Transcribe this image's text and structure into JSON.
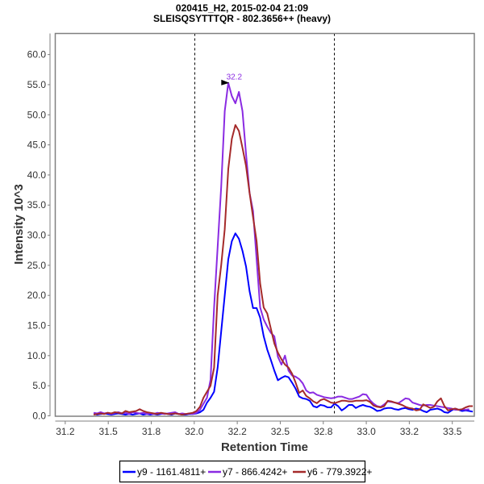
{
  "chart_data": {
    "type": "line",
    "title": [
      "020415_H2, 2015-02-04 21:09",
      "SLEISQSYTTTQR - 802.3656++ (heavy)"
    ],
    "xlabel": "Retention Time",
    "ylabel": "Intensity 10^3",
    "xlim": [
      31.192,
      33.628
    ],
    "ylim": [
      -0.07,
      63.5
    ],
    "x_ticks": [
      31.25,
      31.5,
      31.75,
      32.0,
      32.25,
      32.5,
      32.75,
      33.0,
      33.25,
      33.5
    ],
    "x_tick_labels": [
      "31.2",
      "31.5",
      "31.8",
      "32.0",
      "32.2",
      "32.5",
      "32.8",
      "33.0",
      "33.2",
      "33.5"
    ],
    "y_ticks": [
      0,
      5,
      10,
      15,
      20,
      25,
      30,
      35,
      40,
      45,
      50,
      55,
      60
    ],
    "y_tick_labels": [
      "0.0",
      "5.0",
      "10.0",
      "15.0",
      "20.0",
      "25.0",
      "30.0",
      "35.0",
      "40.0",
      "45.0",
      "50.0",
      "55.0",
      "60.0"
    ],
    "grid": false,
    "legend_position": "bottom",
    "integration_boundaries": [
      32.0,
      32.81
    ],
    "peak_annotation": {
      "label": "32.2",
      "x": 32.218,
      "y": 55.3,
      "color": "#8a2be2"
    },
    "x_start": 31.415,
    "x_step": 0.0206,
    "series": [
      {
        "name": "y9 - 1161.4811+",
        "color": "#0000ff",
        "values": [
          0.3,
          0.2,
          0.3,
          0.4,
          0.3,
          0.2,
          0.3,
          0.4,
          0.3,
          0.2,
          0.3,
          0.2,
          0.3,
          0.4,
          0.2,
          0.3,
          0.2,
          0.3,
          0.2,
          0.3,
          0.4,
          0.3,
          0.2,
          0.4,
          0.3,
          0.2,
          0.2,
          0.3,
          0.3,
          0.4,
          0.6,
          1.0,
          2.2,
          3.0,
          4.0,
          8,
          14,
          20,
          26,
          29,
          30.3,
          29.4,
          27.4,
          24.8,
          20.7,
          17.9,
          17.9,
          16.3,
          13.2,
          11,
          9.3,
          7.5,
          5.9,
          6.3,
          6.6,
          6.4,
          5.5,
          4.5,
          3.2,
          2.9,
          2.8,
          2.5,
          1.6,
          1.4,
          1.8,
          1.7,
          1.4,
          1.4,
          2.0,
          1.6,
          0.9,
          1.3,
          1.8,
          1.8,
          1.3,
          1.6,
          1.8,
          1.6,
          1.5,
          1.2,
          0.8,
          0.9,
          1.2,
          1.3,
          1.3,
          1.1,
          1.0,
          1.2,
          1.3,
          1.1,
          1.0,
          1.2,
          1.1,
          0.8,
          0.6,
          1.0,
          1.1,
          1.2,
          1.0,
          0.6,
          0.5,
          0.9,
          1.2,
          1.0,
          0.8,
          0.9,
          0.8,
          0.7
        ]
      },
      {
        "name": "y7 - 866.4242+",
        "color": "#8a2be2",
        "values": [
          0.5,
          0.4,
          0.6,
          0.4,
          0.5,
          0.3,
          0.5,
          0.6,
          0.4,
          0.5,
          0.3,
          0.6,
          0.5,
          0.4,
          0.5,
          0.3,
          0.4,
          0.3,
          0.5,
          0.4,
          0.3,
          0.4,
          0.5,
          0.6,
          0.3,
          0.4,
          0.3,
          0.4,
          0.3,
          0.5,
          1.0,
          2.0,
          3.0,
          6,
          18,
          28,
          38,
          50.6,
          55.3,
          53.1,
          51.9,
          53.8,
          50.6,
          43.5,
          37,
          34,
          26,
          18,
          16,
          14.8,
          13.8,
          13.2,
          9.8,
          8.5,
          10,
          7.5,
          6.7,
          6.5,
          6.1,
          5.4,
          4.2,
          3.8,
          3.9,
          3.5,
          3.3,
          3.1,
          3.0,
          2.9,
          3.0,
          3.2,
          3.2,
          3.0,
          2.8,
          2.8,
          3.0,
          3.2,
          3.6,
          3.5,
          2.6,
          2.0,
          1.6,
          1.5,
          1.9,
          2.4,
          2.3,
          2.2,
          2.1,
          2.5,
          2.9,
          2.8,
          2.2,
          2.0,
          1.8,
          1.7,
          1.8,
          1.8,
          1.7,
          1.6,
          1.5,
          1.4,
          1.3,
          1.2,
          1.0,
          1.0,
          1.1,
          1.0,
          1.1
        ]
      },
      {
        "name": "y6 - 779.3922+",
        "color": "#a52a2a",
        "values": [
          0.2,
          0.3,
          0.4,
          0.3,
          0.5,
          0.4,
          0.6,
          0.5,
          0.4,
          0.8,
          0.6,
          0.7,
          0.8,
          1.1,
          0.8,
          0.6,
          0.5,
          0.4,
          0.3,
          0.5,
          0.4,
          0.3,
          0.3,
          0.4,
          0.3,
          0.2,
          0.3,
          0.4,
          0.5,
          0.8,
          1.5,
          3.0,
          4.0,
          5.0,
          8.0,
          20,
          25,
          31,
          41,
          46,
          48.3,
          47.3,
          44.5,
          41.5,
          37,
          33,
          29,
          22,
          18,
          17,
          14.5,
          12,
          10.5,
          9.4,
          8.5,
          8,
          7,
          5.5,
          3.8,
          4.2,
          3.3,
          2.9,
          2.4,
          2.1,
          2.6,
          2.8,
          2.5,
          2.2,
          2.1,
          2.3,
          2.5,
          2.5,
          2.4,
          2.4,
          2.5,
          2.5,
          2.5,
          2.6,
          2.3,
          1.7,
          1.5,
          1.4,
          1.6,
          2.5,
          2.4,
          2.2,
          2.0,
          1.8,
          1.5,
          1.3,
          1.2,
          0.9,
          1.0,
          1.9,
          1.6,
          1.3,
          1.5,
          2.4,
          2.9,
          1.6,
          0.9,
          1.1,
          1.2,
          1.0,
          1.1,
          1.4,
          1.6,
          1.6
        ]
      }
    ]
  }
}
